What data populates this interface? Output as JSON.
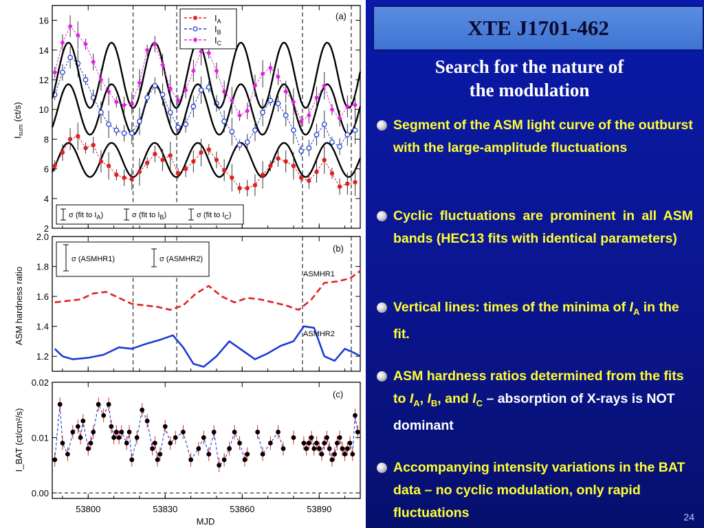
{
  "slide": {
    "title": "XTE J1701-462",
    "subtitle_line1": "Search for the nature of",
    "subtitle_line2": "the modulation",
    "page_number": "24",
    "colors": {
      "background": "#0b1590",
      "title_bar": "#4f80d8",
      "bullet_yellow": "#ffff33",
      "bullet_white": "#ffffff"
    },
    "bullets": [
      {
        "text": "Segment of the ASM light curve of the outburst with the large-amplitude fluctuations"
      },
      {
        "text": "Cyclic fluctuations are prominent in all ASM bands (HEC13 fits with identical parameters)"
      },
      {
        "text_before": "Vertical lines: times of the minima of ",
        "var": "I",
        "sub": "A",
        "text_after": " in the fit."
      },
      {
        "t1": "ASM hardness ratios determined from the fits to ",
        "v1": "I",
        "s1": "A",
        "t2": ", ",
        "v2": "I",
        "s2": "B",
        "t3": ", and ",
        "v3": "I",
        "s3": "C",
        "t4": " – absorption of X-rays is NOT dominant"
      },
      {
        "text": "Accompanying intensity variations in the BAT data – no cyclic modulation, only rapid fluctuations"
      }
    ]
  },
  "chart_data": [
    {
      "type": "line",
      "panel_label": "(a)",
      "ylabel": "I_sum (ct/s)",
      "ylim": [
        2,
        17
      ],
      "yticks": [
        "2",
        "4",
        "6",
        "8",
        "10",
        "12",
        "14",
        "16"
      ],
      "xlim": [
        53786,
        53906
      ],
      "xticks": [
        "53800",
        "53830",
        "53860",
        "53890"
      ],
      "vlines": [
        53817.5,
        53834.5,
        53883.5,
        53902.5
      ],
      "legend": [
        "I_A",
        "I_B",
        "I_C"
      ],
      "legend_main": [
        "I",
        "I",
        "I"
      ],
      "legend_sub": [
        "A",
        "B",
        "C"
      ],
      "error_labels": [
        "σ (fit to I_A)",
        "σ (fit to I_B)",
        "σ (fit to I_C)"
      ],
      "error_labels_main": [
        "σ (fit to I",
        "σ (fit to I",
        "σ (fit to I"
      ],
      "error_labels_sub": [
        "A",
        "B",
        "C"
      ],
      "error_labels_close": [
        ")",
        ")",
        ")"
      ],
      "series": [
        {
          "name": "I_A",
          "color": "#e02020",
          "marker": "filled-circle",
          "fit": {
            "base": 6.6,
            "amp": 1.15,
            "period": 16.8,
            "phase": 53817.5
          },
          "x": [
            53787,
            53790,
            53793,
            53796,
            53799,
            53802,
            53805,
            53808,
            53811,
            53814,
            53817,
            53820,
            53823,
            53826,
            53829,
            53832,
            53835,
            53838,
            53841,
            53844,
            53847,
            53850,
            53853,
            53856,
            53859,
            53862,
            53865,
            53868,
            53871,
            53874,
            53877,
            53880,
            53883,
            53886,
            53889,
            53892,
            53895,
            53898,
            53901,
            53904
          ],
          "y": [
            6.2,
            7.1,
            8.0,
            8.2,
            7.4,
            7.6,
            6.5,
            6.2,
            5.6,
            5.4,
            5.3,
            5.8,
            6.4,
            7.0,
            6.6,
            6.9,
            5.7,
            6.0,
            6.5,
            7.1,
            7.3,
            6.6,
            5.9,
            5.4,
            4.7,
            4.7,
            4.9,
            5.6,
            6.2,
            6.7,
            6.5,
            6.2,
            5.4,
            5.2,
            5.8,
            6.6,
            5.7,
            4.8,
            5.0,
            5.1
          ]
        },
        {
          "name": "I_B",
          "color": "#1f3fd0",
          "marker": "open-circle",
          "fit": {
            "base": 10.0,
            "amp": 1.7,
            "period": 16.8,
            "phase": 53817.5
          },
          "x": [
            53787,
            53790,
            53793,
            53796,
            53799,
            53802,
            53805,
            53808,
            53811,
            53814,
            53817,
            53820,
            53823,
            53826,
            53829,
            53832,
            53835,
            53838,
            53841,
            53844,
            53847,
            53850,
            53853,
            53856,
            53859,
            53862,
            53865,
            53868,
            53871,
            53874,
            53877,
            53880,
            53883,
            53886,
            53889,
            53892,
            53895,
            53898,
            53901,
            53904
          ],
          "y": [
            11.0,
            12.5,
            13.5,
            13.1,
            12.0,
            10.8,
            9.8,
            9.0,
            8.6,
            8.4,
            8.4,
            9.2,
            10.8,
            11.6,
            11.0,
            9.8,
            8.8,
            9.0,
            10.2,
            11.3,
            11.5,
            10.4,
            9.2,
            8.5,
            7.6,
            7.8,
            8.6,
            9.8,
            10.6,
            10.4,
            9.6,
            8.6,
            7.2,
            7.4,
            8.3,
            9.0,
            7.8,
            7.5,
            8.3,
            8.6
          ]
        },
        {
          "name": "I_C",
          "color": "#e020e0",
          "marker": "filled-diamond",
          "fit": {
            "base": 12.3,
            "amp": 2.2,
            "period": 16.8,
            "phase": 53817.5
          },
          "x": [
            53787,
            53790,
            53793,
            53796,
            53799,
            53802,
            53805,
            53808,
            53811,
            53814,
            53817,
            53820,
            53823,
            53826,
            53829,
            53832,
            53835,
            53838,
            53841,
            53844,
            53847,
            53850,
            53853,
            53856,
            53859,
            53862,
            53865,
            53868,
            53871,
            53874,
            53877,
            53880,
            53883,
            53886,
            53889,
            53892,
            53895,
            53898,
            53901,
            53904
          ],
          "y": [
            12.5,
            14.5,
            15.6,
            15.0,
            14.4,
            13.2,
            12.0,
            11.2,
            10.5,
            10.3,
            10.4,
            11.8,
            14.0,
            14.4,
            13.0,
            11.4,
            10.6,
            11.3,
            12.6,
            13.9,
            13.8,
            12.6,
            11.2,
            10.6,
            9.6,
            9.9,
            11.6,
            12.4,
            12.8,
            12.2,
            11.2,
            10.5,
            9.2,
            9.6,
            10.8,
            11.6,
            10.0,
            9.4,
            10.2,
            10.3
          ]
        }
      ]
    },
    {
      "type": "line",
      "panel_label": "(b)",
      "ylabel": "ASM hardness ratio",
      "ylim": [
        1.1,
        2.0
      ],
      "yticks": [
        "1.2",
        "1.4",
        "1.6",
        "1.8",
        "2.0"
      ],
      "xlim": [
        53786,
        53906
      ],
      "vlines": [
        53817.5,
        53834.5,
        53883.5,
        53902.5
      ],
      "error_labels": [
        "σ (ASMHR1)",
        "σ (ASMHR2)"
      ],
      "series": [
        {
          "name": "ASMHR1",
          "color": "#e02020",
          "style": "dashed",
          "x": [
            53787,
            53792,
            53797,
            53802,
            53807,
            53812,
            53817,
            53822,
            53827,
            53832,
            53837,
            53842,
            53847,
            53852,
            53857,
            53862,
            53867,
            53872,
            53877,
            53882,
            53887,
            53892,
            53897,
            53902,
            53906
          ],
          "y": [
            1.56,
            1.57,
            1.58,
            1.62,
            1.63,
            1.59,
            1.55,
            1.54,
            1.53,
            1.51,
            1.54,
            1.62,
            1.67,
            1.6,
            1.56,
            1.59,
            1.58,
            1.56,
            1.54,
            1.51,
            1.58,
            1.69,
            1.7,
            1.72,
            1.77
          ]
        },
        {
          "name": "ASMHR2",
          "color": "#1a3ad8",
          "style": "solid",
          "x": [
            53787,
            53790,
            53794,
            53800,
            53806,
            53812,
            53817,
            53822,
            53828,
            53833,
            53837,
            53841,
            53845,
            53850,
            53855,
            53860,
            53865,
            53870,
            53875,
            53880,
            53884,
            53888,
            53892,
            53896,
            53900,
            53904,
            53906
          ],
          "y": [
            1.25,
            1.2,
            1.18,
            1.19,
            1.21,
            1.26,
            1.25,
            1.28,
            1.31,
            1.34,
            1.26,
            1.15,
            1.13,
            1.2,
            1.3,
            1.24,
            1.18,
            1.22,
            1.27,
            1.3,
            1.4,
            1.39,
            1.2,
            1.17,
            1.25,
            1.22,
            1.2
          ]
        }
      ]
    },
    {
      "type": "scatter",
      "panel_label": "(c)",
      "ylabel": "I_BAT (ct/cm²/s)",
      "ylim": [
        -0.001,
        0.02
      ],
      "yticks": [
        "0.00",
        "0.01",
        "0.02"
      ],
      "xlim": [
        53786,
        53906
      ],
      "xlabel": "MJD",
      "color": "#000000",
      "line_color": "#1f3fd0",
      "err_color": "#e02020",
      "x": [
        53787,
        53789,
        53790,
        53792,
        53794,
        53796,
        53797,
        53798,
        53800,
        53801,
        53802,
        53804,
        53806,
        53808,
        53809,
        53810,
        53811,
        53812,
        53813,
        53815,
        53816,
        53817,
        53819,
        53821,
        53823,
        53825,
        53826,
        53827,
        53828,
        53830,
        53832,
        53834,
        53837,
        53840,
        53843,
        53845,
        53847,
        53849,
        53851,
        53853,
        53855,
        53857,
        53859,
        53861,
        53862,
        53866,
        53868,
        53871,
        53874,
        53876,
        53880,
        53884,
        53885,
        53886,
        53887,
        53888,
        53889,
        53890,
        53891,
        53892,
        53893,
        53894,
        53895,
        53896,
        53897,
        53898,
        53899,
        53900,
        53901,
        53902,
        53903,
        53904,
        53905
      ],
      "y": [
        0.006,
        0.016,
        0.009,
        0.007,
        0.011,
        0.012,
        0.01,
        0.013,
        0.008,
        0.009,
        0.011,
        0.016,
        0.014,
        0.016,
        0.012,
        0.01,
        0.011,
        0.01,
        0.011,
        0.009,
        0.011,
        0.006,
        0.01,
        0.015,
        0.013,
        0.008,
        0.009,
        0.006,
        0.007,
        0.012,
        0.009,
        0.01,
        0.011,
        0.006,
        0.008,
        0.01,
        0.007,
        0.011,
        0.005,
        0.006,
        0.008,
        0.011,
        0.009,
        0.006,
        0.007,
        0.011,
        0.007,
        0.009,
        0.011,
        0.008,
        0.01,
        0.009,
        0.008,
        0.009,
        0.01,
        0.008,
        0.009,
        0.008,
        0.007,
        0.009,
        0.01,
        0.008,
        0.006,
        0.007,
        0.009,
        0.01,
        0.008,
        0.007,
        0.008,
        0.009,
        0.007,
        0.014,
        0.011
      ]
    }
  ]
}
